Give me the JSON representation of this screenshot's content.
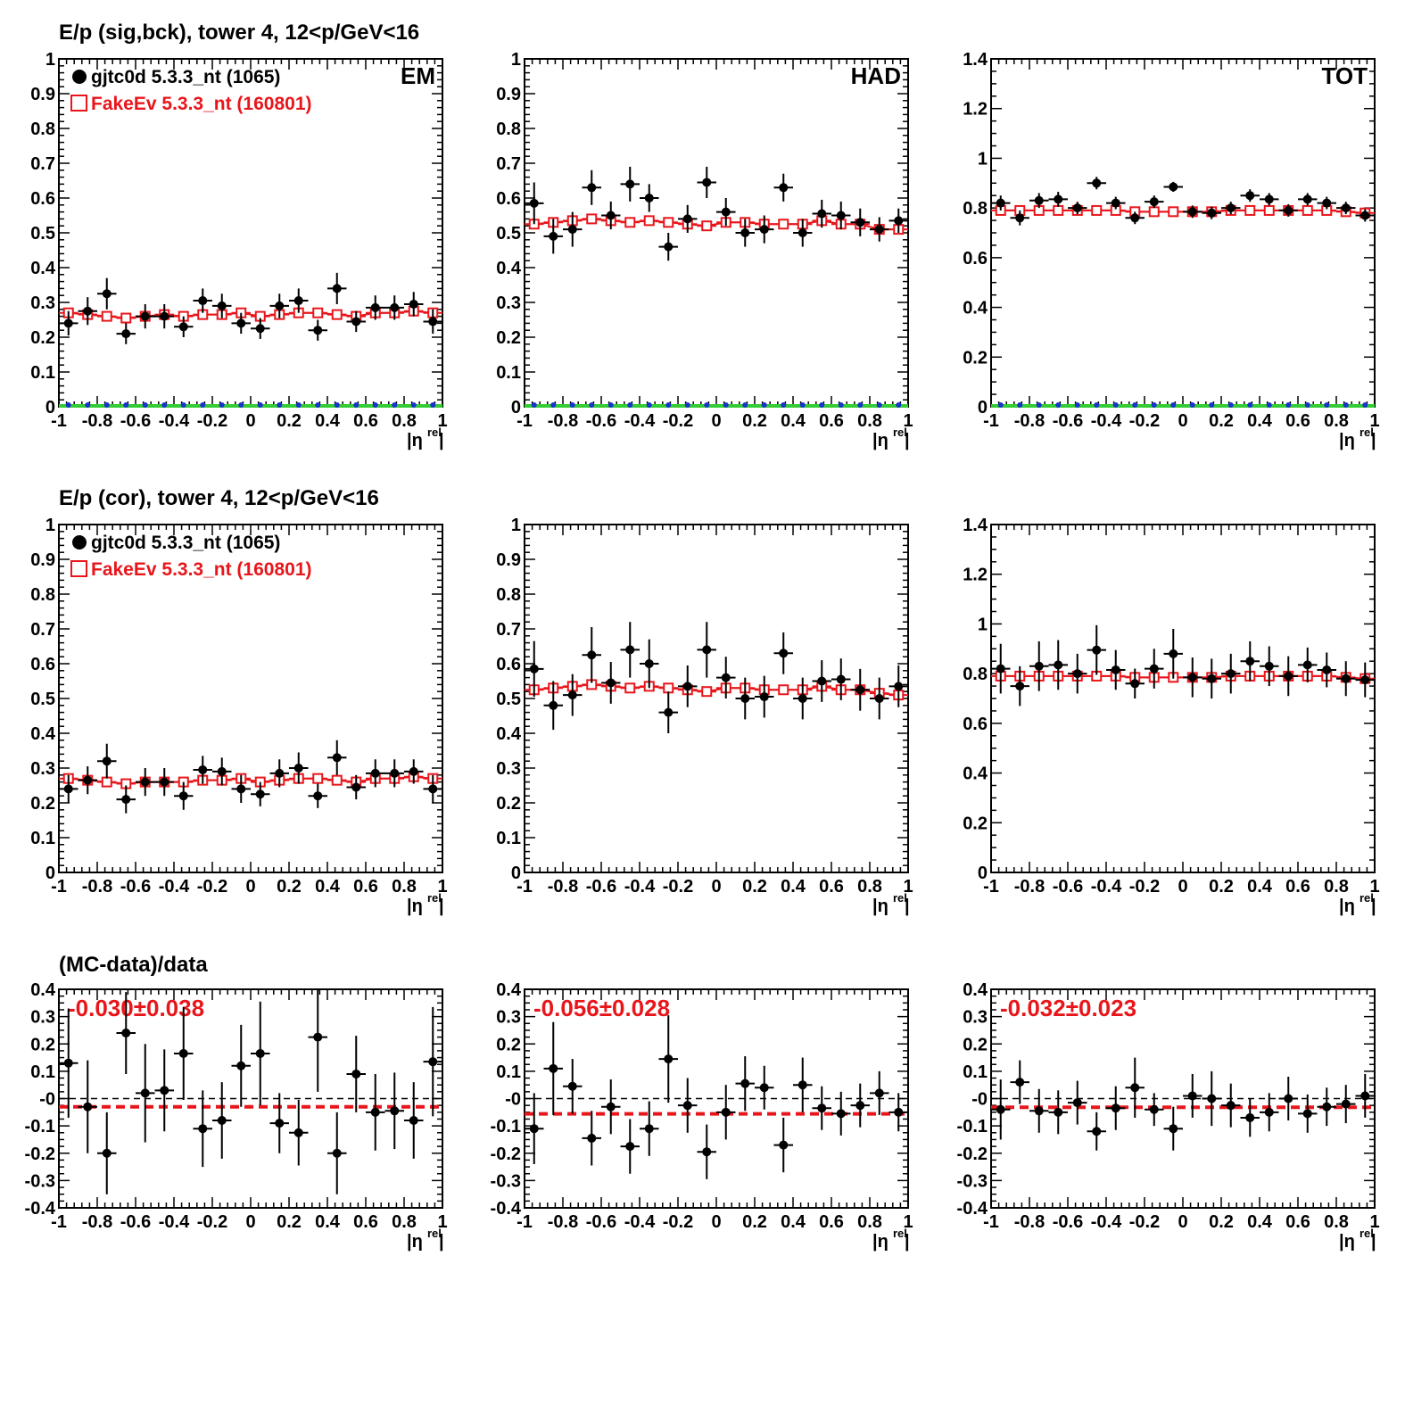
{
  "colors": {
    "data": "#000000",
    "mc": "#e8161b",
    "fit_line": "#e8161b",
    "zero_line": "#000000",
    "baseline_green": "#33cc33",
    "baseline_blue": "#1a33cc"
  },
  "row_titles": [
    "E/p (sig,bck), tower 4, 12<p/GeV<16",
    "E/p (cor), tower 4, 12<p/GeV<16",
    "(MC-data)/data"
  ],
  "legend": {
    "data_label": "gjtc0d 5.3.3_nt (1065)",
    "mc_label": "FakeEv 5.3.3_nt (160801)"
  },
  "axis": {
    "x_title_main": "|η",
    "x_title_sup": "rel",
    "x_title_end": "|"
  },
  "chart_data": [
    {
      "id": "sigbck-em",
      "type": "scatter",
      "corner_label": "EM",
      "x": [
        -0.95,
        -0.85,
        -0.75,
        -0.65,
        -0.55,
        -0.45,
        -0.35,
        -0.25,
        -0.15,
        -0.05,
        0.05,
        0.15,
        0.25,
        0.35,
        0.45,
        0.55,
        0.65,
        0.75,
        0.85,
        0.95
      ],
      "series": [
        {
          "name": "gjtc0d 5.3.3_nt (1065)",
          "values": [
            0.24,
            0.275,
            0.325,
            0.21,
            0.26,
            0.26,
            0.23,
            0.305,
            0.29,
            0.24,
            0.225,
            0.29,
            0.305,
            0.22,
            0.34,
            0.245,
            0.285,
            0.285,
            0.295,
            0.245
          ],
          "errors": [
            0.035,
            0.04,
            0.045,
            0.03,
            0.035,
            0.035,
            0.03,
            0.035,
            0.035,
            0.03,
            0.03,
            0.035,
            0.035,
            0.03,
            0.045,
            0.03,
            0.035,
            0.035,
            0.035,
            0.035
          ]
        },
        {
          "name": "FakeEv 5.3.3_nt (160801)",
          "values": [
            0.27,
            0.265,
            0.26,
            0.255,
            0.26,
            0.265,
            0.26,
            0.265,
            0.265,
            0.27,
            0.26,
            0.265,
            0.27,
            0.27,
            0.265,
            0.26,
            0.27,
            0.27,
            0.275,
            0.27
          ]
        }
      ],
      "xlim": [
        -1,
        1
      ],
      "ylim": [
        0,
        1
      ],
      "xticks": [
        -1,
        -0.8,
        -0.6,
        -0.4,
        -0.2,
        0,
        0.2,
        0.4,
        0.6,
        0.8,
        1
      ],
      "yticks": [
        0,
        0.1,
        0.2,
        0.3,
        0.4,
        0.5,
        0.6,
        0.7,
        0.8,
        0.9,
        1
      ],
      "baseline_series": true,
      "legend": true
    },
    {
      "id": "sigbck-had",
      "type": "scatter",
      "corner_label": "HAD",
      "x": [
        -0.95,
        -0.85,
        -0.75,
        -0.65,
        -0.55,
        -0.45,
        -0.35,
        -0.25,
        -0.15,
        -0.05,
        0.05,
        0.15,
        0.25,
        0.35,
        0.45,
        0.55,
        0.65,
        0.75,
        0.85,
        0.95
      ],
      "series": [
        {
          "name": "gjtc0d 5.3.3_nt (1065)",
          "values": [
            0.585,
            0.49,
            0.51,
            0.63,
            0.55,
            0.64,
            0.6,
            0.46,
            0.54,
            0.645,
            0.56,
            0.5,
            0.51,
            0.63,
            0.5,
            0.555,
            0.55,
            0.53,
            0.51,
            0.535
          ],
          "errors": [
            0.06,
            0.05,
            0.05,
            0.05,
            0.04,
            0.05,
            0.04,
            0.04,
            0.04,
            0.045,
            0.04,
            0.04,
            0.04,
            0.04,
            0.04,
            0.04,
            0.04,
            0.04,
            0.035,
            0.035
          ]
        },
        {
          "name": "FakeEv 5.3.3_nt (160801)",
          "values": [
            0.525,
            0.53,
            0.535,
            0.54,
            0.535,
            0.53,
            0.535,
            0.53,
            0.525,
            0.52,
            0.53,
            0.53,
            0.525,
            0.525,
            0.525,
            0.535,
            0.525,
            0.525,
            0.51,
            0.51
          ]
        }
      ],
      "xlim": [
        -1,
        1
      ],
      "ylim": [
        0,
        1
      ],
      "xticks": [
        -1,
        -0.8,
        -0.6,
        -0.4,
        -0.2,
        0,
        0.2,
        0.4,
        0.6,
        0.8,
        1
      ],
      "yticks": [
        0,
        0.1,
        0.2,
        0.3,
        0.4,
        0.5,
        0.6,
        0.7,
        0.8,
        0.9,
        1
      ],
      "baseline_series": true,
      "legend": false
    },
    {
      "id": "sigbck-tot",
      "type": "scatter",
      "corner_label": "TOT",
      "x": [
        -0.95,
        -0.85,
        -0.75,
        -0.65,
        -0.55,
        -0.45,
        -0.35,
        -0.25,
        -0.15,
        -0.05,
        0.05,
        0.15,
        0.25,
        0.35,
        0.45,
        0.55,
        0.65,
        0.75,
        0.85,
        0.95
      ],
      "series": [
        {
          "name": "gjtc0d 5.3.3_nt (1065)",
          "values": [
            0.82,
            0.76,
            0.83,
            0.835,
            0.8,
            0.9,
            0.82,
            0.76,
            0.825,
            0.885,
            0.785,
            0.78,
            0.8,
            0.85,
            0.835,
            0.79,
            0.835,
            0.82,
            0.8,
            0.77
          ],
          "errors": [
            0.03,
            0.03,
            0.03,
            0.03,
            0.025,
            0.025,
            0.025,
            0.025,
            0.025,
            0.02,
            0.025,
            0.025,
            0.025,
            0.025,
            0.025,
            0.025,
            0.025,
            0.025,
            0.025,
            0.025
          ]
        },
        {
          "name": "FakeEv 5.3.3_nt (160801)",
          "values": [
            0.79,
            0.79,
            0.79,
            0.79,
            0.79,
            0.79,
            0.79,
            0.785,
            0.785,
            0.785,
            0.785,
            0.785,
            0.79,
            0.79,
            0.79,
            0.79,
            0.79,
            0.79,
            0.785,
            0.78
          ]
        }
      ],
      "xlim": [
        -1,
        1
      ],
      "ylim": [
        0,
        1.4
      ],
      "xticks": [
        -1,
        -0.8,
        -0.6,
        -0.4,
        -0.2,
        0,
        0.2,
        0.4,
        0.6,
        0.8,
        1
      ],
      "yticks": [
        0,
        0.2,
        0.4,
        0.6,
        0.8,
        1,
        1.2,
        1.4
      ],
      "baseline_series": true,
      "legend": false
    },
    {
      "id": "cor-em",
      "type": "scatter",
      "x": [
        -0.95,
        -0.85,
        -0.75,
        -0.65,
        -0.55,
        -0.45,
        -0.35,
        -0.25,
        -0.15,
        -0.05,
        0.05,
        0.15,
        0.25,
        0.35,
        0.45,
        0.55,
        0.65,
        0.75,
        0.85,
        0.95
      ],
      "series": [
        {
          "name": "gjtc0d 5.3.3_nt (1065)",
          "values": [
            0.24,
            0.265,
            0.32,
            0.21,
            0.26,
            0.26,
            0.22,
            0.295,
            0.29,
            0.24,
            0.225,
            0.285,
            0.3,
            0.22,
            0.33,
            0.245,
            0.285,
            0.285,
            0.29,
            0.24
          ],
          "errors": [
            0.04,
            0.04,
            0.05,
            0.04,
            0.04,
            0.04,
            0.04,
            0.04,
            0.04,
            0.04,
            0.035,
            0.04,
            0.045,
            0.035,
            0.05,
            0.035,
            0.04,
            0.04,
            0.035,
            0.04
          ]
        },
        {
          "name": "FakeEv 5.3.3_nt (160801)",
          "values": [
            0.27,
            0.265,
            0.26,
            0.255,
            0.26,
            0.26,
            0.26,
            0.265,
            0.265,
            0.27,
            0.26,
            0.265,
            0.27,
            0.27,
            0.265,
            0.26,
            0.27,
            0.27,
            0.275,
            0.27
          ]
        }
      ],
      "xlim": [
        -1,
        1
      ],
      "ylim": [
        0,
        1
      ],
      "xticks": [
        -1,
        -0.8,
        -0.6,
        -0.4,
        -0.2,
        0,
        0.2,
        0.4,
        0.6,
        0.8,
        1
      ],
      "yticks": [
        0,
        0.1,
        0.2,
        0.3,
        0.4,
        0.5,
        0.6,
        0.7,
        0.8,
        0.9,
        1
      ],
      "baseline_series": false,
      "legend": true
    },
    {
      "id": "cor-had",
      "type": "scatter",
      "x": [
        -0.95,
        -0.85,
        -0.75,
        -0.65,
        -0.55,
        -0.45,
        -0.35,
        -0.25,
        -0.15,
        -0.05,
        0.05,
        0.15,
        0.25,
        0.35,
        0.45,
        0.55,
        0.65,
        0.75,
        0.85,
        0.95
      ],
      "series": [
        {
          "name": "gjtc0d 5.3.3_nt (1065)",
          "values": [
            0.585,
            0.48,
            0.51,
            0.625,
            0.545,
            0.64,
            0.6,
            0.46,
            0.535,
            0.64,
            0.56,
            0.5,
            0.505,
            0.63,
            0.5,
            0.55,
            0.555,
            0.525,
            0.5,
            0.535
          ],
          "errors": [
            0.08,
            0.07,
            0.06,
            0.08,
            0.06,
            0.08,
            0.07,
            0.06,
            0.06,
            0.08,
            0.06,
            0.06,
            0.06,
            0.06,
            0.06,
            0.06,
            0.06,
            0.06,
            0.06,
            0.06
          ]
        },
        {
          "name": "FakeEv 5.3.3_nt (160801)",
          "values": [
            0.525,
            0.53,
            0.535,
            0.54,
            0.535,
            0.53,
            0.535,
            0.53,
            0.525,
            0.52,
            0.53,
            0.53,
            0.525,
            0.525,
            0.525,
            0.535,
            0.525,
            0.525,
            0.515,
            0.51
          ]
        }
      ],
      "xlim": [
        -1,
        1
      ],
      "ylim": [
        0,
        1
      ],
      "xticks": [
        -1,
        -0.8,
        -0.6,
        -0.4,
        -0.2,
        0,
        0.2,
        0.4,
        0.6,
        0.8,
        1
      ],
      "yticks": [
        0,
        0.1,
        0.2,
        0.3,
        0.4,
        0.5,
        0.6,
        0.7,
        0.8,
        0.9,
        1
      ],
      "baseline_series": false,
      "legend": false
    },
    {
      "id": "cor-tot",
      "type": "scatter",
      "x": [
        -0.95,
        -0.85,
        -0.75,
        -0.65,
        -0.55,
        -0.45,
        -0.35,
        -0.25,
        -0.15,
        -0.05,
        0.05,
        0.15,
        0.25,
        0.35,
        0.45,
        0.55,
        0.65,
        0.75,
        0.85,
        0.95
      ],
      "series": [
        {
          "name": "gjtc0d 5.3.3_nt (1065)",
          "values": [
            0.82,
            0.75,
            0.83,
            0.835,
            0.8,
            0.895,
            0.815,
            0.76,
            0.82,
            0.88,
            0.785,
            0.78,
            0.8,
            0.85,
            0.83,
            0.79,
            0.835,
            0.815,
            0.78,
            0.775
          ],
          "errors": [
            0.1,
            0.08,
            0.1,
            0.1,
            0.08,
            0.1,
            0.08,
            0.06,
            0.08,
            0.1,
            0.08,
            0.08,
            0.08,
            0.08,
            0.08,
            0.08,
            0.07,
            0.07,
            0.07,
            0.07
          ]
        },
        {
          "name": "FakeEv 5.3.3_nt (160801)",
          "values": [
            0.79,
            0.79,
            0.79,
            0.79,
            0.79,
            0.79,
            0.79,
            0.785,
            0.785,
            0.785,
            0.785,
            0.785,
            0.79,
            0.79,
            0.79,
            0.79,
            0.79,
            0.79,
            0.785,
            0.78
          ]
        }
      ],
      "xlim": [
        -1,
        1
      ],
      "ylim": [
        0,
        1.4
      ],
      "xticks": [
        -1,
        -0.8,
        -0.6,
        -0.4,
        -0.2,
        0,
        0.2,
        0.4,
        0.6,
        0.8,
        1
      ],
      "yticks": [
        0,
        0.2,
        0.4,
        0.6,
        0.8,
        1,
        1.2,
        1.4
      ],
      "baseline_series": false,
      "legend": false
    },
    {
      "id": "ratio-em",
      "type": "scatter",
      "fit_text": "-0.030±0.038",
      "fit_value": -0.03,
      "x": [
        -0.95,
        -0.85,
        -0.75,
        -0.65,
        -0.55,
        -0.45,
        -0.35,
        -0.25,
        -0.15,
        -0.05,
        0.05,
        0.15,
        0.25,
        0.35,
        0.45,
        0.55,
        0.65,
        0.75,
        0.85,
        0.95
      ],
      "series": [
        {
          "name": "(MC-data)/data",
          "values": [
            0.13,
            -0.03,
            -0.2,
            0.24,
            0.02,
            0.03,
            0.165,
            -0.11,
            -0.08,
            0.12,
            0.165,
            -0.09,
            -0.125,
            0.225,
            -0.2,
            0.09,
            -0.05,
            -0.045,
            -0.08,
            0.135
          ],
          "errors": [
            0.2,
            0.17,
            0.15,
            0.15,
            0.18,
            0.15,
            0.17,
            0.14,
            0.14,
            0.15,
            0.19,
            0.11,
            0.12,
            0.2,
            0.15,
            0.14,
            0.14,
            0.14,
            0.14,
            0.2
          ]
        }
      ],
      "xlim": [
        -1,
        1
      ],
      "ylim": [
        -0.4,
        0.4
      ],
      "xticks": [
        -1,
        -0.8,
        -0.6,
        -0.4,
        -0.2,
        0,
        0.2,
        0.4,
        0.6,
        0.8,
        1
      ],
      "yticks": [
        -0.4,
        -0.3,
        -0.2,
        -0.1,
        0,
        0.1,
        0.2,
        0.3,
        0.4
      ],
      "ytick_labels": [
        "-0.4",
        "-0.3",
        "-0.2",
        "-0.1",
        "-0",
        "0.1",
        "0.2",
        "0.3",
        "0.4"
      ]
    },
    {
      "id": "ratio-had",
      "type": "scatter",
      "fit_text": "-0.056±0.028",
      "fit_value": -0.056,
      "x": [
        -0.95,
        -0.85,
        -0.75,
        -0.65,
        -0.55,
        -0.45,
        -0.35,
        -0.25,
        -0.15,
        -0.05,
        0.05,
        0.15,
        0.25,
        0.35,
        0.45,
        0.55,
        0.65,
        0.75,
        0.85,
        0.95
      ],
      "series": [
        {
          "name": "(MC-data)/data",
          "values": [
            -0.11,
            0.11,
            0.045,
            -0.145,
            -0.03,
            -0.175,
            -0.11,
            0.145,
            -0.025,
            -0.195,
            -0.05,
            0.055,
            0.04,
            -0.17,
            0.05,
            -0.035,
            -0.055,
            -0.025,
            0.02,
            -0.05
          ],
          "errors": [
            0.13,
            0.17,
            0.1,
            0.1,
            0.1,
            0.1,
            0.1,
            0.16,
            0.1,
            0.1,
            0.1,
            0.1,
            0.08,
            0.1,
            0.1,
            0.08,
            0.08,
            0.08,
            0.08,
            0.07
          ]
        }
      ],
      "xlim": [
        -1,
        1
      ],
      "ylim": [
        -0.4,
        0.4
      ],
      "xticks": [
        -1,
        -0.8,
        -0.6,
        -0.4,
        -0.2,
        0,
        0.2,
        0.4,
        0.6,
        0.8,
        1
      ],
      "yticks": [
        -0.4,
        -0.3,
        -0.2,
        -0.1,
        0,
        0.1,
        0.2,
        0.3,
        0.4
      ],
      "ytick_labels": [
        "-0.4",
        "-0.3",
        "-0.2",
        "-0.1",
        "-0",
        "0.1",
        "0.2",
        "0.3",
        "0.4"
      ]
    },
    {
      "id": "ratio-tot",
      "type": "scatter",
      "fit_text": "-0.032±0.023",
      "fit_value": -0.032,
      "x": [
        -0.95,
        -0.85,
        -0.75,
        -0.65,
        -0.55,
        -0.45,
        -0.35,
        -0.25,
        -0.15,
        -0.05,
        0.05,
        0.15,
        0.25,
        0.35,
        0.45,
        0.55,
        0.65,
        0.75,
        0.85,
        0.95
      ],
      "series": [
        {
          "name": "(MC-data)/data",
          "values": [
            -0.04,
            0.06,
            -0.045,
            -0.05,
            -0.015,
            -0.12,
            -0.035,
            0.04,
            -0.04,
            -0.11,
            0.01,
            0.0,
            -0.025,
            -0.07,
            -0.05,
            0.0,
            -0.055,
            -0.03,
            -0.02,
            0.01
          ],
          "errors": [
            0.11,
            0.08,
            0.08,
            0.08,
            0.08,
            0.07,
            0.08,
            0.11,
            0.06,
            0.08,
            0.08,
            0.1,
            0.08,
            0.07,
            0.07,
            0.08,
            0.07,
            0.07,
            0.07,
            0.08
          ]
        }
      ],
      "xlim": [
        -1,
        1
      ],
      "ylim": [
        -0.4,
        0.4
      ],
      "xticks": [
        -1,
        -0.8,
        -0.6,
        -0.4,
        -0.2,
        0,
        0.2,
        0.4,
        0.6,
        0.8,
        1
      ],
      "yticks": [
        -0.4,
        -0.3,
        -0.2,
        -0.1,
        0,
        0.1,
        0.2,
        0.3,
        0.4
      ],
      "ytick_labels": [
        "-0.4",
        "-0.3",
        "-0.2",
        "-0.1",
        "-0",
        "0.1",
        "0.2",
        "0.3",
        "0.4"
      ]
    }
  ]
}
